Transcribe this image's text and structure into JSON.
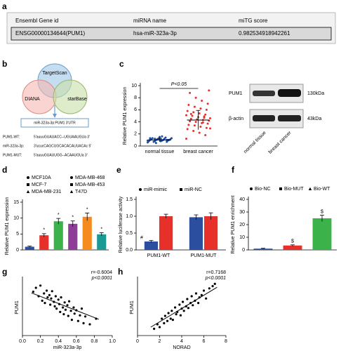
{
  "panel_labels": [
    "a",
    "b",
    "c",
    "d",
    "e",
    "f",
    "g",
    "h"
  ],
  "table": {
    "header": [
      "Ensembl Gene id",
      "miRNA name",
      "miTG score"
    ],
    "rows": [
      [
        "ENSG00000134644(PUM1)",
        "hsa-miR-323a-3p",
        "0.982534918942261"
      ]
    ]
  },
  "diagram": {
    "venn": [
      "TargetScan",
      "DIANA",
      "starBase"
    ],
    "box": "miR-323a-3p:PUM1 3'UTR",
    "sequences": [
      {
        "label": "PUM1-WT:",
        "text": "5'auuuGUAUACC--UGUAAUGUa  3'"
      },
      {
        "label": "miR-323a-3p:",
        "text": "3'ucucCAGCUGCACACAUUACAc  5'"
      },
      {
        "label": "PUM1-MUT:",
        "text": "5'auuuGUAUUGG--ACAAUGUa  3'"
      }
    ]
  },
  "blot": {
    "rows": [
      "PUM1",
      "β-actin"
    ],
    "sizes": [
      "130kDa",
      "43kDa"
    ],
    "lanes": [
      "normal tissue",
      "breast cancer"
    ]
  },
  "chart_data": [
    {
      "type": "strip",
      "y_label": "Relative PUM1 expression",
      "annotation": "P<0.05",
      "categories": [
        "normal tissue",
        "breast cancer"
      ],
      "color": [
        "#1f4e9c",
        "#e8302a"
      ],
      "values": [
        [
          0.6,
          0.7,
          0.8,
          0.8,
          0.9,
          0.9,
          0.9,
          1.0,
          1.0,
          1.0,
          1.0,
          1.1,
          1.1,
          1.1,
          1.2,
          1.2,
          1.3,
          1.3,
          1.4,
          1.5,
          0.7,
          0.9,
          1.0,
          1.1,
          1.2,
          0.8,
          1.0,
          1.6,
          0.5,
          1.3
        ],
        [
          1.2,
          1.8,
          2.2,
          2.5,
          2.8,
          3.0,
          3.2,
          3.4,
          3.5,
          3.7,
          3.8,
          4.0,
          4.1,
          4.2,
          4.3,
          4.4,
          4.5,
          4.6,
          4.7,
          4.8,
          5.0,
          5.1,
          5.2,
          5.4,
          5.6,
          5.8,
          6.0,
          6.2,
          6.5,
          6.8,
          7.0,
          7.5,
          8.0,
          8.8,
          9.2,
          3.9,
          4.4,
          5.3,
          2.9,
          4.9
        ]
      ],
      "mean": [
        1.0,
        4.3
      ],
      "sd": [
        0.3,
        1.6
      ],
      "ylim": [
        0,
        10
      ],
      "yticks": [
        0,
        2,
        4,
        6,
        8,
        10
      ]
    },
    {
      "type": "bar",
      "y_label": "Relative PUM1 expression",
      "series": [
        {
          "name": "MCF10A",
          "color": "#2b4f9e",
          "values": [
            1.0
          ],
          "errors": [
            0.2
          ]
        },
        {
          "name": "MCF-7",
          "color": "#e8302a",
          "values": [
            4.6
          ],
          "errors": [
            0.5
          ],
          "marker": "*"
        },
        {
          "name": "MDA-MB-231",
          "color": "#3cb34a",
          "values": [
            9.0
          ],
          "errors": [
            0.9
          ],
          "marker": "*"
        },
        {
          "name": "MDA-MB-468",
          "color": "#8e3d98",
          "values": [
            8.2
          ],
          "errors": [
            0.9
          ],
          "marker": "*"
        },
        {
          "name": "MDA-MB-453",
          "color": "#f58a1f",
          "values": [
            10.4
          ],
          "errors": [
            1.2
          ],
          "marker": "*"
        },
        {
          "name": "T47D",
          "color": "#1a9a94",
          "values": [
            4.9
          ],
          "errors": [
            0.5
          ],
          "marker": "*"
        }
      ],
      "ylim": [
        0,
        15
      ],
      "yticks": [
        0,
        5,
        10,
        15
      ]
    },
    {
      "type": "grouped_bar",
      "y_label": "Relative luciferase activity",
      "categories": [
        "PUM1-WT",
        "PUM1-MUT"
      ],
      "series": [
        {
          "name": "miR-mimic",
          "color": "#2b4f9e",
          "values": [
            0.25,
            0.97
          ],
          "errors": [
            0.03,
            0.07
          ],
          "marker": [
            "#",
            null
          ]
        },
        {
          "name": "miR-NC",
          "color": "#e8302a",
          "values": [
            1.0,
            1.0
          ],
          "errors": [
            0.06,
            0.1
          ]
        }
      ],
      "ylim": [
        0,
        1.5
      ],
      "yticks": [
        {
          "value": 0,
          "label": "0.0"
        },
        0.5,
        {
          "value": 1,
          "label": "1.0"
        },
        1.5
      ]
    },
    {
      "type": "bar",
      "y_label": "Relative PUM1 enrichment",
      "series": [
        {
          "name": "Bio-NC",
          "color": "#2b4f9e",
          "values": [
            1.0
          ],
          "errors": [
            0.3
          ]
        },
        {
          "name": "Bio-MUT",
          "color": "#e8302a",
          "values": [
            3.5
          ],
          "errors": [
            0.5
          ],
          "marker": "$"
        },
        {
          "name": "Bio-WT",
          "color": "#3cb34a",
          "values": [
            25
          ],
          "errors": [
            2.5
          ],
          "marker": "$"
        }
      ],
      "ylim": [
        0,
        40
      ],
      "yticks": [
        0,
        10,
        20,
        30,
        40
      ]
    },
    {
      "type": "scatter",
      "x_label": "miR-323a-3p",
      "y_label": "PUM1",
      "r": "r=-0.6004",
      "p": "p<0.0001",
      "x": [
        0.12,
        0.15,
        0.18,
        0.2,
        0.22,
        0.24,
        0.25,
        0.27,
        0.28,
        0.3,
        0.31,
        0.32,
        0.33,
        0.35,
        0.36,
        0.37,
        0.38,
        0.4,
        0.41,
        0.42,
        0.43,
        0.45,
        0.46,
        0.47,
        0.48,
        0.5,
        0.51,
        0.52,
        0.54,
        0.55,
        0.57,
        0.58,
        0.6,
        0.62,
        0.64,
        0.66,
        0.68,
        0.7,
        0.75,
        0.82
      ],
      "y": [
        7.8,
        8.5,
        7.0,
        8.9,
        6.2,
        7.5,
        5.8,
        8.0,
        6.8,
        7.2,
        5.5,
        6.6,
        7.9,
        6.0,
        5.2,
        7.0,
        4.8,
        6.4,
        5.6,
        4.2,
        6.8,
        5.0,
        3.8,
        5.9,
        4.6,
        5.4,
        3.5,
        6.1,
        4.4,
        2.8,
        5.0,
        3.9,
        4.5,
        2.6,
        3.6,
        4.8,
        2.2,
        3.4,
        2.0,
        3.0
      ],
      "trend": {
        "x": [
          0.1,
          0.85
        ],
        "y": [
          7.6,
          2.9
        ]
      },
      "xlim": [
        0,
        1
      ],
      "xticks": [
        {
          "value": 0,
          "label": "0.0"
        },
        0.2,
        0.4,
        0.6,
        0.8,
        {
          "value": 1,
          "label": "1.0"
        }
      ],
      "ylim": [
        0,
        10
      ]
    },
    {
      "type": "scatter",
      "x_label": "NORAD",
      "y_label": "PUM1",
      "r": "r=0.7168",
      "p": "p<0.0001",
      "x": [
        1.5,
        1.8,
        2.0,
        2.2,
        2.4,
        2.5,
        2.7,
        2.8,
        3.0,
        3.1,
        3.2,
        3.4,
        3.5,
        3.6,
        3.8,
        3.9,
        4.0,
        4.1,
        4.2,
        4.4,
        4.5,
        4.6,
        4.8,
        4.9,
        5.0,
        5.2,
        5.3,
        5.5,
        5.6,
        5.8,
        6.0,
        6.2,
        6.5,
        6.8,
        7.0
      ],
      "y": [
        1.2,
        2.0,
        1.5,
        3.0,
        2.2,
        3.5,
        2.6,
        4.0,
        3.0,
        4.4,
        2.8,
        5.0,
        3.8,
        4.2,
        5.5,
        3.6,
        4.8,
        6.0,
        4.4,
        5.2,
        6.5,
        4.9,
        5.8,
        7.0,
        5.4,
        6.2,
        7.5,
        5.8,
        6.8,
        7.2,
        8.0,
        6.6,
        8.4,
        8.8,
        9.2
      ],
      "trend": {
        "x": [
          1.2,
          7.2
        ],
        "y": [
          1.5,
          8.6
        ]
      },
      "xlim": [
        0,
        8
      ],
      "xticks": [
        0,
        2,
        4,
        6,
        8
      ],
      "ylim": [
        0,
        10
      ]
    }
  ]
}
